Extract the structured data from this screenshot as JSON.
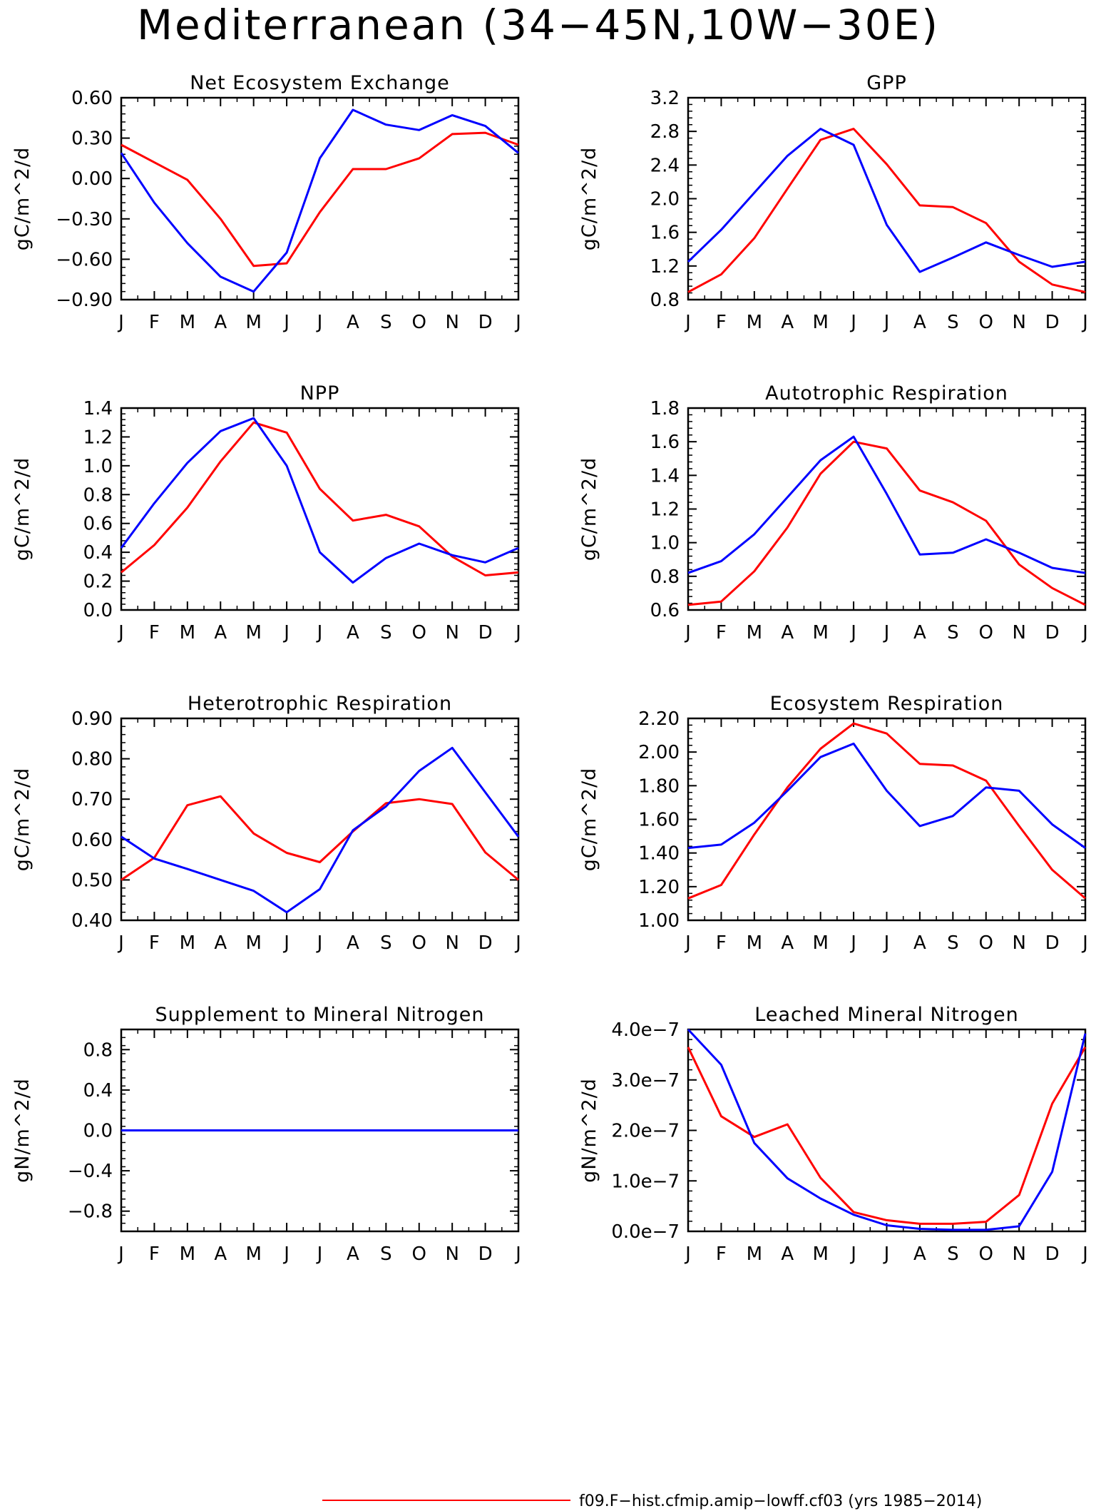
{
  "title": "Mediterranean (34−45N,10W−30E)",
  "months": [
    "J",
    "F",
    "M",
    "A",
    "M",
    "J",
    "J",
    "A",
    "S",
    "O",
    "N",
    "D",
    "J"
  ],
  "colors": {
    "red": "#ff0000",
    "blue": "#0000ff"
  },
  "legend": [
    {
      "label": "f09.F−hist.cfmip.amip−lowff.cf03 (yrs 1985−2014)",
      "color": "#ff0000"
    }
  ],
  "chart_data": [
    {
      "type": "line",
      "title": "Net Ecosystem Exchange",
      "ylabel": "gC/m^2/d",
      "ylim": [
        -0.9,
        0.6
      ],
      "yticks": [
        -0.9,
        -0.6,
        -0.3,
        0.0,
        0.3,
        0.6
      ],
      "ytick_labels": [
        "−0.90",
        "−0.60",
        "−0.30",
        "0.00",
        "0.30",
        "0.60"
      ],
      "series": [
        {
          "color": "#ff0000",
          "values": [
            0.25,
            0.12,
            -0.01,
            -0.3,
            -0.65,
            -0.63,
            -0.25,
            0.07,
            0.07,
            0.15,
            0.33,
            0.34,
            0.25
          ]
        },
        {
          "color": "#0000ff",
          "values": [
            0.19,
            -0.18,
            -0.48,
            -0.73,
            -0.84,
            -0.55,
            0.15,
            0.51,
            0.4,
            0.36,
            0.47,
            0.39,
            0.19
          ]
        }
      ]
    },
    {
      "type": "line",
      "title": "GPP",
      "ylabel": "gC/m^2/d",
      "ylim": [
        0.8,
        3.2
      ],
      "yticks": [
        0.8,
        1.2,
        1.6,
        2.0,
        2.4,
        2.8,
        3.2
      ],
      "ytick_labels": [
        "0.8",
        "1.2",
        "1.6",
        "2.0",
        "2.4",
        "2.8",
        "3.2"
      ],
      "series": [
        {
          "color": "#ff0000",
          "values": [
            0.89,
            1.1,
            1.53,
            2.12,
            2.7,
            2.83,
            2.41,
            1.92,
            1.9,
            1.71,
            1.25,
            0.98,
            0.89
          ]
        },
        {
          "color": "#0000ff",
          "values": [
            1.25,
            1.63,
            2.07,
            2.51,
            2.83,
            2.64,
            1.69,
            1.13,
            1.3,
            1.48,
            1.33,
            1.19,
            1.25
          ]
        }
      ]
    },
    {
      "type": "line",
      "title": "NPP",
      "ylabel": "gC/m^2/d",
      "ylim": [
        0.0,
        1.4
      ],
      "yticks": [
        0.0,
        0.2,
        0.4,
        0.6,
        0.8,
        1.0,
        1.2,
        1.4
      ],
      "ytick_labels": [
        "0.0",
        "0.2",
        "0.4",
        "0.6",
        "0.8",
        "1.0",
        "1.2",
        "1.4"
      ],
      "series": [
        {
          "color": "#ff0000",
          "values": [
            0.26,
            0.45,
            0.71,
            1.03,
            1.3,
            1.23,
            0.84,
            0.62,
            0.66,
            0.58,
            0.37,
            0.24,
            0.26
          ]
        },
        {
          "color": "#0000ff",
          "values": [
            0.43,
            0.74,
            1.02,
            1.24,
            1.33,
            1.0,
            0.4,
            0.19,
            0.36,
            0.46,
            0.38,
            0.33,
            0.43
          ]
        }
      ]
    },
    {
      "type": "line",
      "title": "Autotrophic Respiration",
      "ylabel": "gC/m^2/d",
      "ylim": [
        0.6,
        1.8
      ],
      "yticks": [
        0.6,
        0.8,
        1.0,
        1.2,
        1.4,
        1.6,
        1.8
      ],
      "ytick_labels": [
        "0.6",
        "0.8",
        "1.0",
        "1.2",
        "1.4",
        "1.6",
        "1.8"
      ],
      "series": [
        {
          "color": "#ff0000",
          "values": [
            0.63,
            0.65,
            0.83,
            1.09,
            1.41,
            1.6,
            1.56,
            1.31,
            1.24,
            1.13,
            0.87,
            0.73,
            0.63
          ]
        },
        {
          "color": "#0000ff",
          "values": [
            0.82,
            0.89,
            1.05,
            1.27,
            1.49,
            1.63,
            1.29,
            0.93,
            0.94,
            1.02,
            0.94,
            0.85,
            0.82
          ]
        }
      ]
    },
    {
      "type": "line",
      "title": "Heterotrophic Respiration",
      "ylabel": "gC/m^2/d",
      "ylim": [
        0.4,
        0.9
      ],
      "yticks": [
        0.4,
        0.5,
        0.6,
        0.7,
        0.8,
        0.9
      ],
      "ytick_labels": [
        "0.40",
        "0.50",
        "0.60",
        "0.70",
        "0.80",
        "0.90"
      ],
      "series": [
        {
          "color": "#ff0000",
          "values": [
            0.5,
            0.555,
            0.685,
            0.707,
            0.615,
            0.567,
            0.544,
            0.62,
            0.69,
            0.7,
            0.688,
            0.568,
            0.5
          ]
        },
        {
          "color": "#0000ff",
          "values": [
            0.607,
            0.553,
            0.527,
            0.5,
            0.473,
            0.42,
            0.477,
            0.623,
            0.682,
            0.77,
            0.827,
            0.717,
            0.607
          ]
        }
      ]
    },
    {
      "type": "line",
      "title": "Ecosystem Respiration",
      "ylabel": "gC/m^2/d",
      "ylim": [
        1.0,
        2.2
      ],
      "yticks": [
        1.0,
        1.2,
        1.4,
        1.6,
        1.8,
        2.0,
        2.2
      ],
      "ytick_labels": [
        "1.00",
        "1.20",
        "1.40",
        "1.60",
        "1.80",
        "2.00",
        "2.20"
      ],
      "series": [
        {
          "color": "#ff0000",
          "values": [
            1.13,
            1.21,
            1.51,
            1.79,
            2.02,
            2.17,
            2.11,
            1.93,
            1.92,
            1.83,
            1.56,
            1.3,
            1.13
          ]
        },
        {
          "color": "#0000ff",
          "values": [
            1.43,
            1.45,
            1.58,
            1.77,
            1.97,
            2.05,
            1.77,
            1.56,
            1.62,
            1.79,
            1.77,
            1.57,
            1.43
          ]
        }
      ]
    },
    {
      "type": "line",
      "title": "Supplement to Mineral Nitrogen",
      "ylabel": "gN/m^2/d",
      "ylim": [
        -1.0,
        1.0
      ],
      "yticks": [
        -0.8,
        -0.4,
        0.0,
        0.4,
        0.8
      ],
      "ytick_labels": [
        "−0.8",
        "−0.4",
        "0.0",
        "0.4",
        "0.8"
      ],
      "series": [
        {
          "color": "#ff0000",
          "values": [
            0,
            0,
            0,
            0,
            0,
            0,
            0,
            0,
            0,
            0,
            0,
            0,
            0
          ]
        },
        {
          "color": "#0000ff",
          "values": [
            0,
            0,
            0,
            0,
            0,
            0,
            0,
            0,
            0,
            0,
            0,
            0,
            0
          ]
        }
      ]
    },
    {
      "type": "line",
      "title": "Leached Mineral Nitrogen",
      "ylabel": "gN/m^2/d",
      "ylim": [
        0.0,
        4e-07
      ],
      "yticks": [
        0.0,
        1e-07,
        2e-07,
        3e-07,
        4e-07
      ],
      "ytick_labels": [
        "0.0e−7",
        "1.0e−7",
        "2.0e−7",
        "3.0e−7",
        "4.0e−7"
      ],
      "series": [
        {
          "color": "#ff0000",
          "values": [
            3.65e-07,
            2.28e-07,
            1.87e-07,
            2.12e-07,
            1.06e-07,
            3.8e-08,
            2.2e-08,
            1.5e-08,
            1.5e-08,
            1.9e-08,
            7.2e-08,
            2.53e-07,
            3.65e-07
          ]
        },
        {
          "color": "#0000ff",
          "values": [
            4e-07,
            3.3e-07,
            1.75e-07,
            1.05e-07,
            6.5e-08,
            3.3e-08,
            1.2e-08,
            5e-09,
            3e-09,
            3e-09,
            1e-08,
            1.18e-07,
            3.92e-07
          ]
        }
      ]
    }
  ]
}
